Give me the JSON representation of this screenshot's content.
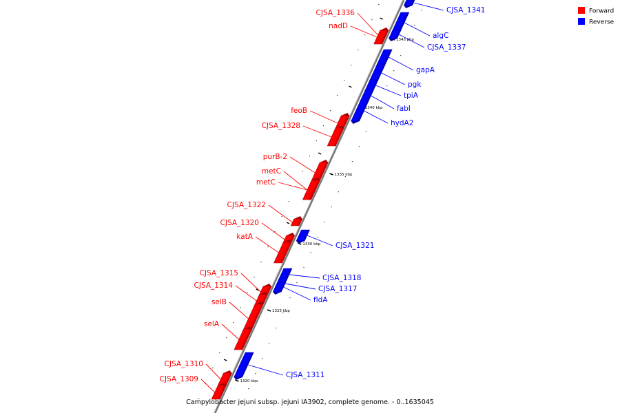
{
  "caption": "Campylobacter jejuni subsp. jejuni IA3902, complete genome. - 0..1635045",
  "legend": [
    {
      "label": "Forward",
      "color": "#ff0000"
    },
    {
      "label": "Reverse",
      "color": "#0000ff"
    }
  ],
  "colors": {
    "forward": "#ff0000",
    "reverse": "#0000ff",
    "backbone": "#888888"
  },
  "ticks": [
    "1320 kbp",
    "1325 kbp",
    "1330 kbp",
    "1335 kbp",
    "1340 kbp",
    "1345 kbp"
  ],
  "genes": [
    {
      "name": "CJSA_1341",
      "strand": "reverse"
    },
    {
      "name": "CJSA_1336",
      "strand": "forward"
    },
    {
      "name": "nadD",
      "strand": "forward"
    },
    {
      "name": "algC",
      "strand": "reverse"
    },
    {
      "name": "CJSA_1337",
      "strand": "reverse"
    },
    {
      "name": "gapA",
      "strand": "reverse"
    },
    {
      "name": "pgk",
      "strand": "reverse"
    },
    {
      "name": "tpiA",
      "strand": "reverse"
    },
    {
      "name": "fabI",
      "strand": "reverse"
    },
    {
      "name": "hydA2",
      "strand": "reverse"
    },
    {
      "name": "feoB",
      "strand": "forward"
    },
    {
      "name": "CJSA_1328",
      "strand": "forward"
    },
    {
      "name": "purB-2",
      "strand": "forward"
    },
    {
      "name": "metC",
      "strand": "forward"
    },
    {
      "name": "metC",
      "strand": "forward"
    },
    {
      "name": "CJSA_1322",
      "strand": "forward"
    },
    {
      "name": "CJSA_1320",
      "strand": "forward"
    },
    {
      "name": "katA",
      "strand": "forward"
    },
    {
      "name": "CJSA_1321",
      "strand": "reverse"
    },
    {
      "name": "CJSA_1318",
      "strand": "reverse"
    },
    {
      "name": "CJSA_1317",
      "strand": "reverse"
    },
    {
      "name": "fldA",
      "strand": "reverse"
    },
    {
      "name": "CJSA_1315",
      "strand": "forward"
    },
    {
      "name": "CJSA_1314",
      "strand": "forward"
    },
    {
      "name": "selB",
      "strand": "forward"
    },
    {
      "name": "selA",
      "strand": "forward"
    },
    {
      "name": "CJSA_1310",
      "strand": "forward"
    },
    {
      "name": "CJSA_1309",
      "strand": "forward"
    },
    {
      "name": "CJSA_1311",
      "strand": "reverse"
    }
  ]
}
